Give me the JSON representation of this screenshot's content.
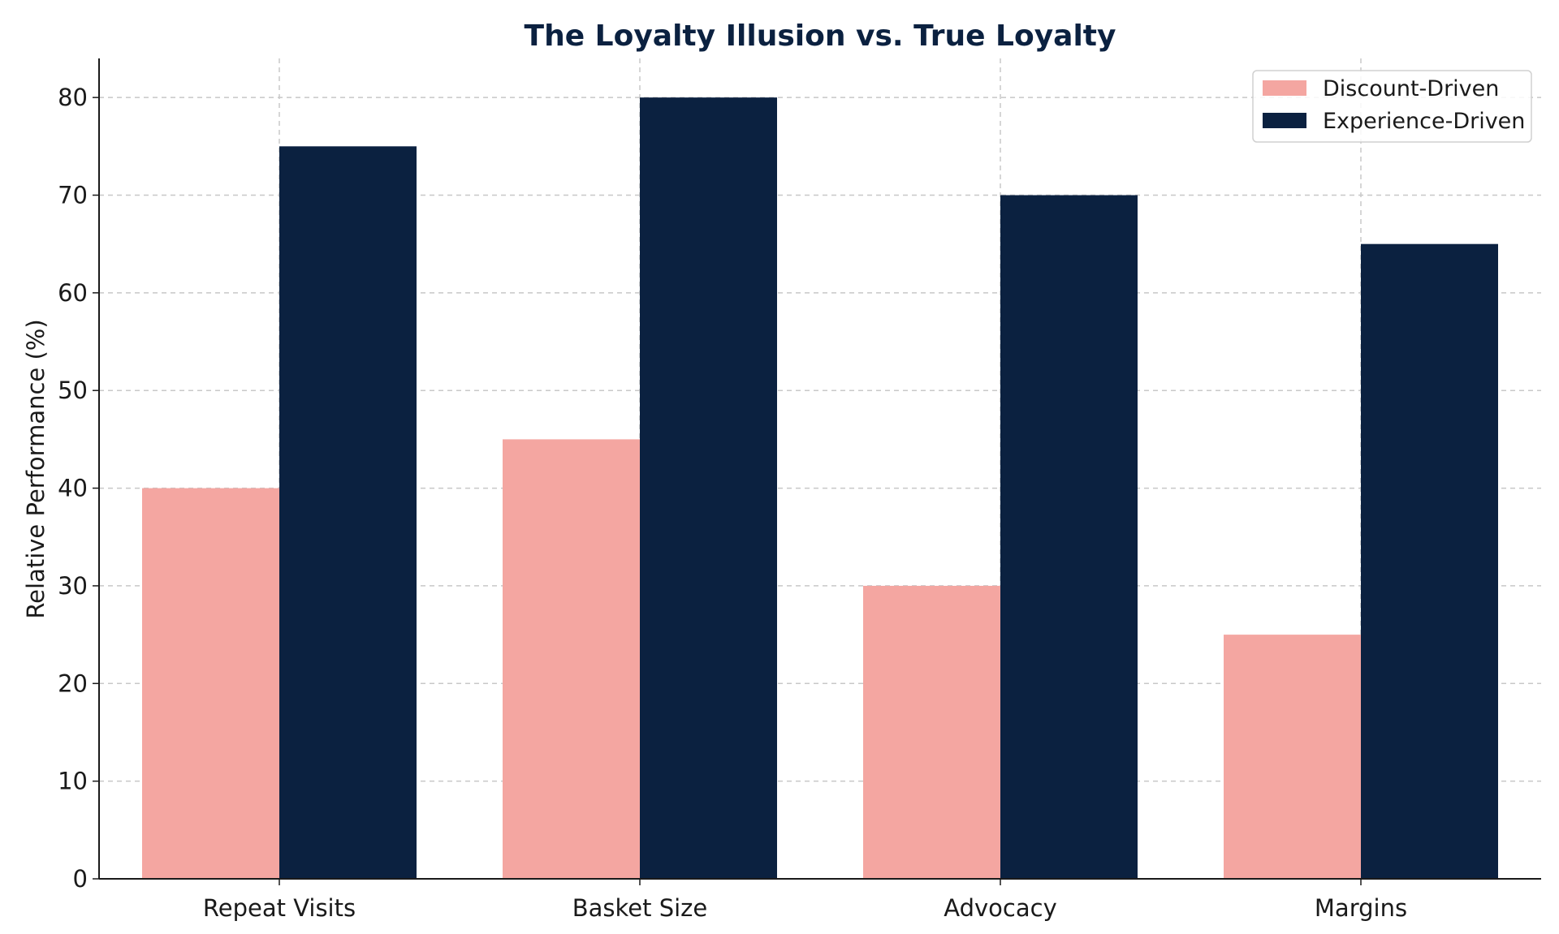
{
  "chart_data": {
    "type": "bar",
    "title": "The Loyalty Illusion vs. True Loyalty",
    "xlabel": "",
    "ylabel": "Relative Performance (%)",
    "categories": [
      "Repeat Visits",
      "Basket Size",
      "Advocacy",
      "Margins"
    ],
    "series": [
      {
        "name": "Discount-Driven",
        "values": [
          40,
          45,
          30,
          25
        ],
        "color": "#f4a6a1"
      },
      {
        "name": "Experience-Driven",
        "values": [
          75,
          80,
          70,
          65
        ],
        "color": "#0b2140"
      }
    ],
    "ylim": [
      0,
      84
    ],
    "yticks": [
      0,
      10,
      20,
      30,
      40,
      50,
      60,
      70,
      80
    ],
    "grid": true,
    "legend_position": "top-right",
    "colors": {
      "title": "#0b2140",
      "axis": "#1a1a1a",
      "grid": "#c8c8c8"
    }
  }
}
